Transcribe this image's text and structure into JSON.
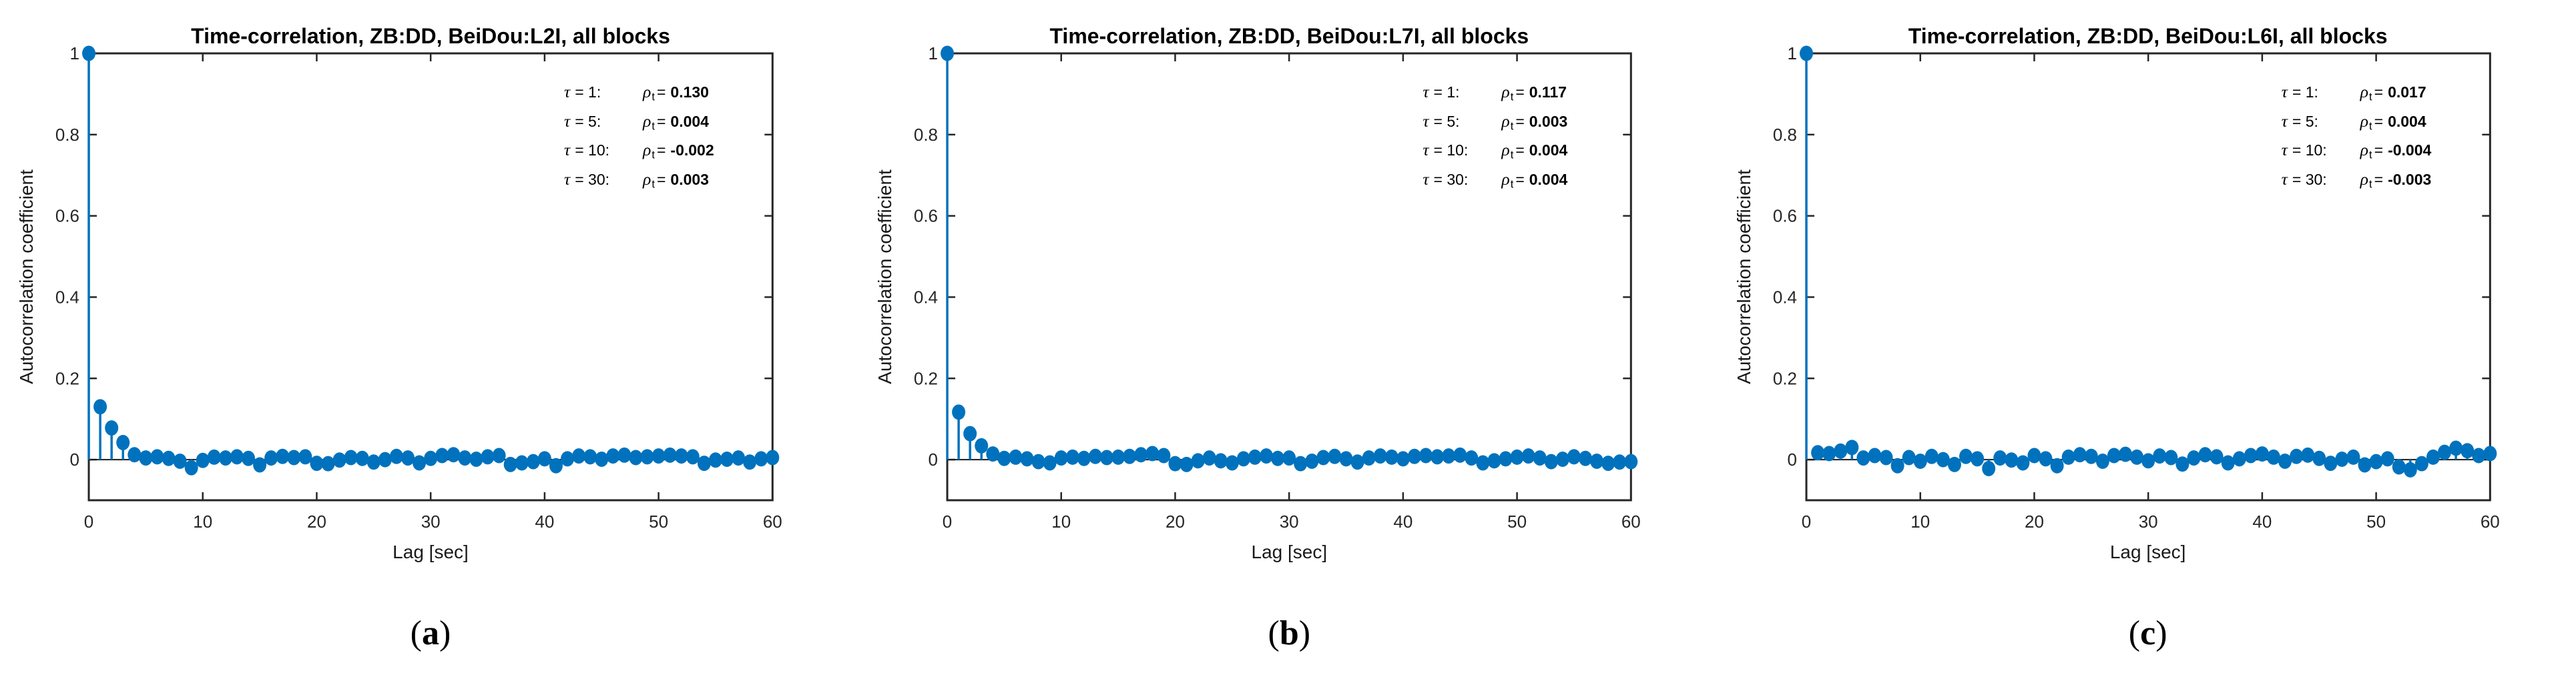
{
  "figure": {
    "background": "#ffffff",
    "accent_blue": "#0072BD",
    "axis_color": "#262626",
    "text_color": "#000000",
    "rho_symbol": "ρ",
    "rho_subscript": "t",
    "equals_sign": "=",
    "ylabel": "Autocorrelation coefficient",
    "xlabel": "Lag [sec]"
  },
  "chart_data": [
    {
      "type": "stem",
      "title": "Time-correlation, ZB:DD, BeiDou:L2I, all blocks",
      "caption": {
        "open": "(",
        "letter": "a",
        "close": ")"
      },
      "xlabel": "Lag [sec]",
      "ylabel": "Autocorrelation coefficient",
      "xlim": [
        0,
        60
      ],
      "ylim": [
        -0.1,
        1
      ],
      "grid": false,
      "xticks": [
        0,
        10,
        20,
        30,
        40,
        50,
        60
      ],
      "xtick_labels": [
        "0",
        "10",
        "20",
        "30",
        "40",
        "50",
        "60"
      ],
      "yticks": [
        0,
        0.2,
        0.4,
        0.6,
        0.8,
        1
      ],
      "ytick_labels": [
        "0",
        "0.2",
        "0.4",
        "0.6",
        "0.8",
        "1"
      ],
      "x_start": 0,
      "x_step": 1,
      "values": [
        1,
        0.13,
        0.078,
        0.042,
        0.012,
        0.004,
        0.007,
        0.003,
        -0.004,
        -0.02,
        -0.002,
        0.006,
        0.004,
        0.007,
        0.003,
        -0.013,
        0.004,
        0.008,
        0.005,
        0.007,
        -0.009,
        -0.01,
        -0.001,
        0.005,
        0.003,
        -0.006,
        0,
        0.008,
        0.004,
        -0.008,
        0.003,
        0.01,
        0.012,
        0.004,
        0.001,
        0.007,
        0.01,
        -0.012,
        -0.008,
        -0.005,
        0.002,
        -0.015,
        0.002,
        0.009,
        0.007,
        0.001,
        0.009,
        0.011,
        0.005,
        0.007,
        0.009,
        0.011,
        0.009,
        0.007,
        -0.009,
        -0.001,
        0.001,
        0.004,
        -0.006,
        0.002,
        0.005
      ],
      "annotation": {
        "rows": [
          {
            "tau_sym": "τ",
            "tau_rest": "= 1:",
            "value": "0.130"
          },
          {
            "tau_sym": "τ",
            "tau_rest": "= 5:",
            "value": "0.004"
          },
          {
            "tau_sym": "τ",
            "tau_rest": "= 10:",
            "value": "-0.002"
          },
          {
            "tau_sym": "τ",
            "tau_rest": "= 30:",
            "value": "0.003"
          }
        ]
      }
    },
    {
      "type": "stem",
      "title": "Time-correlation, ZB:DD, BeiDou:L7I, all blocks",
      "caption": {
        "open": "(",
        "letter": "b",
        "close": ")"
      },
      "xlabel": "Lag [sec]",
      "ylabel": "Autocorrelation coefficient",
      "xlim": [
        0,
        60
      ],
      "ylim": [
        -0.1,
        1
      ],
      "grid": false,
      "xticks": [
        0,
        10,
        20,
        30,
        40,
        50,
        60
      ],
      "xtick_labels": [
        "0",
        "10",
        "20",
        "30",
        "40",
        "50",
        "60"
      ],
      "yticks": [
        0,
        0.2,
        0.4,
        0.6,
        0.8,
        1
      ],
      "ytick_labels": [
        "0",
        "0.2",
        "0.4",
        "0.6",
        "0.8",
        "1"
      ],
      "x_start": 0,
      "x_step": 1,
      "values": [
        1,
        0.117,
        0.064,
        0.034,
        0.014,
        0.003,
        0.006,
        0.002,
        -0.005,
        -0.008,
        0.004,
        0.006,
        0.003,
        0.008,
        0.005,
        0.006,
        0.008,
        0.012,
        0.015,
        0.01,
        -0.01,
        -0.012,
        -0.003,
        0.004,
        -0.003,
        -0.008,
        0.002,
        0.006,
        0.009,
        0.003,
        0.004,
        -0.01,
        -0.004,
        0.005,
        0.008,
        0.002,
        -0.006,
        0.004,
        0.009,
        0.006,
        0.002,
        0.008,
        0.01,
        0.007,
        0.009,
        0.011,
        0.004,
        -0.008,
        -0.003,
        0.002,
        0.006,
        0.009,
        0.004,
        -0.005,
        0.001,
        0.007,
        0.003,
        -0.004,
        -0.009,
        -0.006,
        -0.005
      ],
      "annotation": {
        "rows": [
          {
            "tau_sym": "τ",
            "tau_rest": "= 1:",
            "value": "0.117"
          },
          {
            "tau_sym": "τ",
            "tau_rest": "= 5:",
            "value": "0.003"
          },
          {
            "tau_sym": "τ",
            "tau_rest": "= 10:",
            "value": "0.004"
          },
          {
            "tau_sym": "τ",
            "tau_rest": "= 30:",
            "value": "0.004"
          }
        ]
      }
    },
    {
      "type": "stem",
      "title": "Time-correlation, ZB:DD, BeiDou:L6I, all blocks",
      "caption": {
        "open": "(",
        "letter": "c",
        "close": ")"
      },
      "xlabel": "Lag [sec]",
      "ylabel": "Autocorrelation coefficient",
      "xlim": [
        0,
        60
      ],
      "ylim": [
        -0.1,
        1
      ],
      "grid": false,
      "xticks": [
        0,
        10,
        20,
        30,
        40,
        50,
        60
      ],
      "xtick_labels": [
        "0",
        "10",
        "20",
        "30",
        "40",
        "50",
        "60"
      ],
      "yticks": [
        0,
        0.2,
        0.4,
        0.6,
        0.8,
        1
      ],
      "ytick_labels": [
        "0",
        "0.2",
        "0.4",
        "0.6",
        "0.8",
        "1"
      ],
      "x_start": 0,
      "x_step": 1,
      "values": [
        1,
        0.017,
        0.015,
        0.021,
        0.03,
        0.004,
        0.01,
        0.005,
        -0.015,
        0.005,
        -0.004,
        0.008,
        0,
        -0.012,
        0.008,
        0.002,
        -0.022,
        0.004,
        -0.001,
        -0.008,
        0.01,
        0.002,
        -0.015,
        0.006,
        0.012,
        0.008,
        -0.004,
        0.01,
        0.013,
        0.006,
        -0.003,
        0.009,
        0.005,
        -0.011,
        0.004,
        0.012,
        0.007,
        -0.008,
        0.002,
        0.01,
        0.014,
        0.006,
        -0.004,
        0.008,
        0.011,
        0.003,
        -0.009,
        0.001,
        0.006,
        -0.013,
        -0.005,
        0.002,
        -0.018,
        -0.025,
        -0.01,
        0.006,
        0.018,
        0.028,
        0.022,
        0.01,
        0.015
      ],
      "annotation": {
        "rows": [
          {
            "tau_sym": "τ",
            "tau_rest": "= 1:",
            "value": "0.017"
          },
          {
            "tau_sym": "τ",
            "tau_rest": "= 5:",
            "value": "0.004"
          },
          {
            "tau_sym": "τ",
            "tau_rest": "= 10:",
            "value": "-0.004"
          },
          {
            "tau_sym": "τ",
            "tau_rest": "= 30:",
            "value": "-0.003"
          }
        ]
      }
    }
  ]
}
